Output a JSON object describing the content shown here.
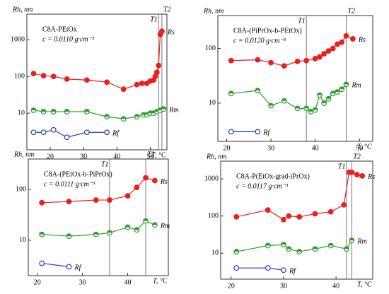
{
  "chart_data": [
    {
      "type": "scatter",
      "title": "C8A-PEtOx",
      "subtitle": "c = 0.0110 g·cm⁻³",
      "y_label": "Rh, nm",
      "x_label": "T, °C",
      "xlim": [
        13,
        55
      ],
      "xticks": [
        20,
        30,
        40,
        50
      ],
      "ylim": [
        1,
        5000
      ],
      "yticks": [
        10,
        100,
        1000
      ],
      "ylog": true,
      "vlines": [
        {
          "label": "T1",
          "value": 52.5
        },
        {
          "label": "T2",
          "value": 53.5
        }
      ],
      "series": [
        {
          "name": "Rs",
          "color": "#e8201f",
          "marker": "filled",
          "x": [
            15,
            18,
            21,
            25,
            31,
            37,
            42,
            46,
            47.5,
            49,
            50,
            51,
            51.5,
            52,
            52.5,
            53,
            53.5
          ],
          "values": [
            120,
            105,
            100,
            85,
            80,
            70,
            45,
            60,
            65,
            65,
            75,
            80,
            100,
            130,
            200,
            1400,
            1700
          ]
        },
        {
          "name": "Rm",
          "color": "#2e9b2e",
          "marker": "half",
          "x": [
            15,
            18,
            21,
            25,
            31,
            37,
            42,
            46,
            48,
            49,
            50,
            51,
            52,
            53,
            54
          ],
          "values": [
            12,
            11,
            11,
            11,
            11,
            8,
            7,
            8,
            9,
            9,
            10,
            10,
            11,
            12,
            13
          ]
        },
        {
          "name": "Rf",
          "color": "#1f3fbf",
          "marker": "open",
          "x": [
            15,
            18,
            21,
            25,
            31,
            37
          ],
          "values": [
            3,
            3,
            3.5,
            2.2,
            3,
            3
          ]
        }
      ]
    },
    {
      "type": "scatter",
      "title": "C8A-(PiPrOx-b-PEtOx)",
      "subtitle": "c = 0.0120 g·cm⁻³",
      "y_label": "Rh, nm",
      "x_label": "T, °C",
      "xlim": [
        18,
        53
      ],
      "xticks": [
        20,
        30,
        40,
        50
      ],
      "ylim": [
        2,
        400
      ],
      "yticks": [
        10,
        100
      ],
      "ylog": true,
      "vlines": [
        {
          "label": "T1",
          "value": 38
        },
        {
          "label": "T2",
          "value": 47
        }
      ],
      "series": [
        {
          "name": "Rs",
          "color": "#e8201f",
          "marker": "filled",
          "x": [
            21,
            27,
            30,
            33,
            36,
            38,
            40,
            41,
            42,
            43,
            44,
            45,
            46,
            47,
            48.5
          ],
          "values": [
            60,
            62,
            55,
            48,
            58,
            60,
            65,
            70,
            80,
            90,
            100,
            120,
            130,
            170,
            150
          ]
        },
        {
          "name": "Rm",
          "color": "#2e9b2e",
          "marker": "half",
          "x": [
            21,
            27,
            30,
            33,
            36,
            38,
            39,
            40,
            41,
            42,
            43,
            44,
            45,
            46,
            47
          ],
          "values": [
            15,
            17,
            9,
            11,
            8,
            8,
            7,
            7.5,
            14,
            10,
            12,
            15,
            16,
            18,
            22
          ]
        },
        {
          "name": "Rf",
          "color": "#1f3fbf",
          "marker": "open",
          "x": [
            21,
            27
          ],
          "values": [
            3,
            3
          ]
        }
      ]
    },
    {
      "type": "scatter",
      "title": "C8A-(PEtOx-b-PiPrOx)",
      "subtitle": "c = 0.0111 g·cm⁻³",
      "y_label": "Rh, nm",
      "x_label": "T, °C",
      "xlim": [
        18,
        49
      ],
      "xticks": [
        20,
        30,
        40
      ],
      "ylim": [
        2,
        400
      ],
      "yticks": [
        10,
        100
      ],
      "ylog": true,
      "vlines": [
        {
          "label": "T1",
          "value": 36
        },
        {
          "label": "T2",
          "value": 44
        }
      ],
      "series": [
        {
          "name": "Rs",
          "color": "#e8201f",
          "marker": "filled",
          "x": [
            21,
            27,
            33,
            36,
            40,
            42,
            44,
            46
          ],
          "values": [
            55,
            58,
            62,
            62,
            75,
            110,
            170,
            150
          ]
        },
        {
          "name": "Rm",
          "color": "#2e9b2e",
          "marker": "half",
          "x": [
            21,
            27,
            33,
            36,
            40,
            42,
            44,
            46
          ],
          "values": [
            13,
            12,
            13,
            14,
            18,
            16,
            24,
            20
          ]
        },
        {
          "name": "Rf",
          "color": "#1f3fbf",
          "marker": "open",
          "x": [
            21,
            27
          ],
          "values": [
            3.5,
            3
          ]
        }
      ]
    },
    {
      "type": "scatter",
      "title": "C8A-P(EtOx-grad-iPrOx)",
      "subtitle": "c = 0.0117 g·cm⁻³",
      "y_label": "Rh, nm",
      "x_label": "T, °C",
      "xlim": [
        18,
        47
      ],
      "xticks": [
        20,
        30,
        40
      ],
      "ylim": [
        2,
        3000
      ],
      "yticks": [
        10,
        100,
        1000
      ],
      "ylog": true,
      "vlines": [
        {
          "label": "T1",
          "value": 42
        },
        {
          "label": "T2",
          "value": 43
        }
      ],
      "series": [
        {
          "name": "Rs",
          "color": "#e8201f",
          "marker": "filled",
          "x": [
            21,
            27,
            30,
            31,
            33,
            36,
            39,
            41.5,
            42.5,
            43,
            44,
            45
          ],
          "values": [
            95,
            145,
            80,
            100,
            95,
            115,
            130,
            200,
            1500,
            1500,
            1300,
            1200
          ]
        },
        {
          "name": "Rm",
          "color": "#2e9b2e",
          "marker": "half",
          "x": [
            21,
            27,
            30,
            31,
            33,
            36,
            39,
            42,
            43
          ],
          "values": [
            11,
            16,
            17,
            13,
            11,
            13,
            16,
            13,
            22
          ]
        },
        {
          "name": "Rf",
          "color": "#1f3fbf",
          "marker": "open",
          "x": [
            21,
            27,
            30
          ],
          "values": [
            4,
            4,
            3.5
          ]
        }
      ]
    }
  ]
}
